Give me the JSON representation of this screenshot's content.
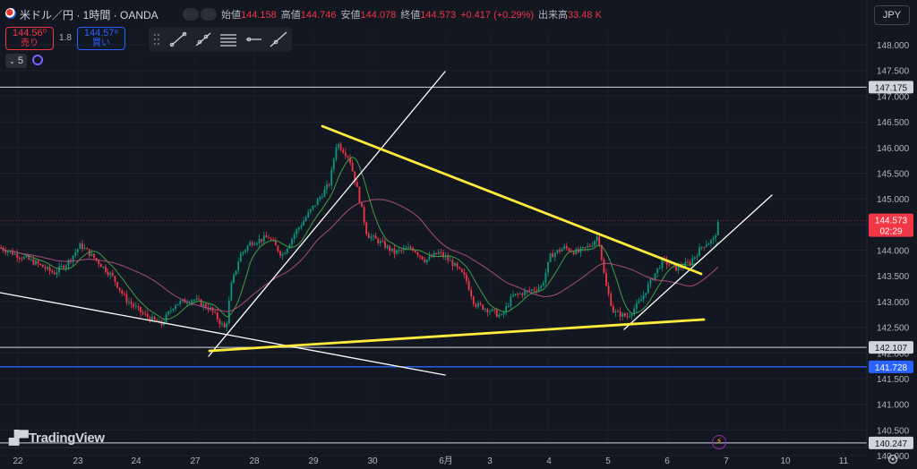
{
  "header": {
    "symbol_title": "米ドル／円 · 1時間 · OANDA",
    "ohlc": [
      {
        "label": "始値",
        "value": "144.158"
      },
      {
        "label": "高値",
        "value": "144.746"
      },
      {
        "label": "安値",
        "value": "144.078"
      },
      {
        "label": "終値",
        "value": "144.573"
      }
    ],
    "change": "+0.417 (+0.29%)",
    "volume_label": "出来高",
    "volume": "33.48 K"
  },
  "trade": {
    "sell_price": "144.56⁰",
    "sell_label": "売り",
    "spread": "1.8",
    "buy_price": "144.57⁸",
    "buy_label": "買い"
  },
  "indicator_count": "5",
  "currency": "JPY",
  "logo_text": "TradingView",
  "tools": [
    "trend-line-tool",
    "ray-tool",
    "parallel-channel-tool",
    "horizontal-ray-tool",
    "extended-line-tool"
  ],
  "chart_data": {
    "type": "candlestick",
    "price_axis_ticks": [
      "148.000",
      "147.500",
      "147.000",
      "146.500",
      "146.000",
      "145.500",
      "145.000",
      "144.500",
      "144.000",
      "143.500",
      "143.000",
      "142.500",
      "142.000",
      "141.500",
      "141.000",
      "140.500",
      "140.000"
    ],
    "time_axis_labels": [
      "22",
      "23",
      "24",
      "27",
      "28",
      "29",
      "30",
      "6月",
      "3",
      "4",
      "5",
      "6",
      "7",
      "10",
      "11"
    ],
    "current_price": "144.573",
    "countdown": "02:29",
    "horizontal_levels": [
      {
        "value": "147.175",
        "color": "#d1d4dc"
      },
      {
        "value": "142.107",
        "color": "#d1d4dc"
      },
      {
        "value": "141.728",
        "color": "#2962ff"
      },
      {
        "value": "140.247",
        "color": "#d1d4dc"
      }
    ],
    "colors": {
      "up": "#089981",
      "down": "#f23645",
      "ma_fast": "#43a047",
      "ma_slow": "#ad4c79",
      "trend": "#ffeb3b"
    }
  }
}
